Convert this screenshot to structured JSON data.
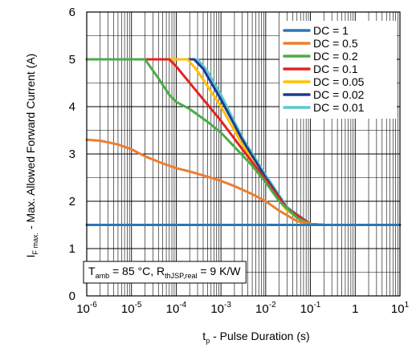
{
  "chart_data": {
    "type": "line",
    "xscale": "log",
    "xlim": [
      1e-06,
      10
    ],
    "ylim": [
      0,
      6
    ],
    "grid": true,
    "legend_position": "top-right",
    "xlabel": {
      "main": "t",
      "sub": "p",
      "rest": " - Pulse Duration (s)"
    },
    "ylabel": {
      "main": "I",
      "sub": "F max.",
      "rest": " - Max. Allowed Forward Current (A)"
    },
    "annotation": {
      "t1": "T",
      "s1": "amb",
      "t2": " = 85 °C, R",
      "s2": "thJSP,real",
      "t3": " = 9 K/W"
    },
    "x_ticks": [
      {
        "base": "10",
        "exp": "-6",
        "value": 1e-06
      },
      {
        "base": "10",
        "exp": "-5",
        "value": 1e-05
      },
      {
        "base": "10",
        "exp": "-4",
        "value": 0.0001
      },
      {
        "base": "10",
        "exp": "-3",
        "value": 0.001
      },
      {
        "base": "10",
        "exp": "-2",
        "value": 0.01
      },
      {
        "base": "10",
        "exp": "-1",
        "value": 0.1
      },
      {
        "base": "1",
        "exp": "",
        "value": 1
      },
      {
        "base": "10",
        "exp": "1",
        "value": 10
      }
    ],
    "y_ticks": [
      "0",
      "1",
      "2",
      "3",
      "4",
      "5",
      "6"
    ],
    "series": [
      {
        "name": "DC = 1",
        "color": "#2e75b6",
        "x": [
          1e-06,
          10
        ],
        "y": [
          1.5,
          1.5
        ]
      },
      {
        "name": "DC = 0.5",
        "color": "#ed7d31",
        "x": [
          1e-06,
          2e-06,
          5e-06,
          1e-05,
          2e-05,
          5e-05,
          0.0001,
          0.0002,
          0.0005,
          0.001,
          0.002,
          0.005,
          0.01,
          0.02,
          0.05,
          0.1,
          0.2,
          1,
          10
        ],
        "y": [
          3.3,
          3.28,
          3.2,
          3.1,
          2.95,
          2.8,
          2.7,
          2.63,
          2.52,
          2.43,
          2.32,
          2.15,
          2.0,
          1.8,
          1.58,
          1.52,
          1.5,
          1.5,
          1.5
        ]
      },
      {
        "name": "DC = 0.2",
        "color": "#4aac4a",
        "x": [
          1e-06,
          2e-05,
          4e-05,
          7e-05,
          0.0001,
          0.0002,
          0.0005,
          0.001,
          0.002,
          0.005,
          0.01,
          0.02,
          0.05,
          0.1,
          0.2,
          1,
          10
        ],
        "y": [
          5.0,
          5.0,
          4.6,
          4.25,
          4.1,
          3.95,
          3.68,
          3.45,
          3.15,
          2.75,
          2.4,
          2.0,
          1.65,
          1.52,
          1.5,
          1.5,
          1.5
        ]
      },
      {
        "name": "DC = 0.1",
        "color": "#e52222",
        "x": [
          1e-06,
          7e-05,
          0.0001,
          0.0003,
          0.001,
          0.003,
          0.01,
          0.03,
          0.1,
          0.2,
          1,
          10
        ],
        "y": [
          5.0,
          5.0,
          4.85,
          4.3,
          3.7,
          3.1,
          2.45,
          1.85,
          1.52,
          1.5,
          1.5,
          1.5
        ]
      },
      {
        "name": "DC = 0.05",
        "color": "#ffc000",
        "x": [
          1e-06,
          0.00018,
          0.0003,
          0.001,
          0.003,
          0.01,
          0.03,
          0.1,
          0.2,
          1,
          10
        ],
        "y": [
          5.0,
          5.0,
          4.75,
          4.0,
          3.2,
          2.4,
          1.8,
          1.52,
          1.5,
          1.5,
          1.5
        ]
      },
      {
        "name": "DC = 0.02",
        "color": "#1f3a93",
        "x": [
          1e-06,
          0.00025,
          0.0004,
          0.001,
          0.003,
          0.01,
          0.03,
          0.1,
          0.2,
          1,
          10
        ],
        "y": [
          5.0,
          5.0,
          4.8,
          4.15,
          3.3,
          2.5,
          1.85,
          1.52,
          1.5,
          1.5,
          1.5
        ]
      },
      {
        "name": "DC = 0.01",
        "color": "#5bc8d0",
        "x": [
          1e-06,
          0.0003,
          0.0005,
          0.001,
          0.003,
          0.01,
          0.03,
          0.1,
          0.2,
          1,
          10
        ],
        "y": [
          5.0,
          5.0,
          4.75,
          4.25,
          3.35,
          2.55,
          1.88,
          1.52,
          1.5,
          1.5,
          1.5
        ]
      }
    ]
  }
}
